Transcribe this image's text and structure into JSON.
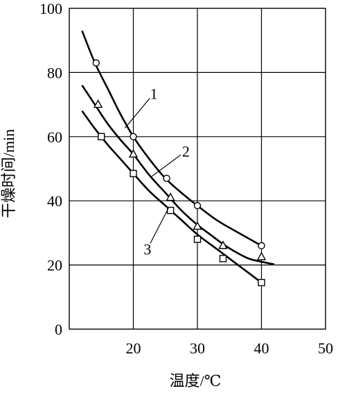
{
  "chart_data": {
    "type": "line",
    "xlabel": "温度/℃",
    "ylabel": "干燥时间/min",
    "xlim": [
      10,
      50
    ],
    "ylim": [
      0,
      100
    ],
    "x_ticks": [
      20,
      30,
      40,
      50
    ],
    "y_ticks": [
      0,
      20,
      40,
      60,
      80,
      100
    ],
    "grid": true,
    "series": [
      {
        "name": "1",
        "marker": "circle",
        "points": [
          [
            14.2,
            83
          ],
          [
            20,
            60
          ],
          [
            25.2,
            47
          ],
          [
            30,
            38.5
          ],
          [
            40,
            26
          ]
        ],
        "curve": [
          [
            12,
            93
          ],
          [
            14,
            83
          ],
          [
            16,
            75
          ],
          [
            18,
            67
          ],
          [
            20,
            60
          ],
          [
            22.5,
            53
          ],
          [
            25,
            47
          ],
          [
            27.5,
            42.5
          ],
          [
            30,
            38.5
          ],
          [
            33,
            34
          ],
          [
            36,
            30.5
          ],
          [
            40,
            26
          ]
        ]
      },
      {
        "name": "2",
        "marker": "triangle",
        "points": [
          [
            14.5,
            70
          ],
          [
            20,
            54.5
          ],
          [
            25.8,
            41
          ],
          [
            30,
            32
          ],
          [
            34,
            26
          ],
          [
            40,
            22.5
          ]
        ],
        "curve": [
          [
            12,
            76
          ],
          [
            14,
            70
          ],
          [
            16,
            64
          ],
          [
            18,
            59
          ],
          [
            20,
            54.5
          ],
          [
            22.5,
            48
          ],
          [
            25,
            42.5
          ],
          [
            27.5,
            37
          ],
          [
            30,
            32.5
          ],
          [
            32,
            29.5
          ],
          [
            34,
            26.5
          ],
          [
            36,
            24
          ],
          [
            38,
            22
          ],
          [
            40,
            21
          ],
          [
            42,
            20.2
          ]
        ]
      },
      {
        "name": "3",
        "marker": "square",
        "points": [
          [
            15,
            60
          ],
          [
            20,
            48.5
          ],
          [
            25.8,
            37
          ],
          [
            30,
            28
          ],
          [
            34,
            22
          ],
          [
            40,
            14.5
          ]
        ],
        "curve": [
          [
            12,
            68
          ],
          [
            14,
            62.5
          ],
          [
            16,
            57.5
          ],
          [
            18,
            53
          ],
          [
            20,
            48.5
          ],
          [
            22.5,
            43
          ],
          [
            25,
            38.5
          ],
          [
            27.5,
            34
          ],
          [
            30,
            29.5
          ],
          [
            33,
            25
          ],
          [
            36,
            20.5
          ],
          [
            38,
            17.5
          ],
          [
            40,
            14.5
          ]
        ]
      }
    ],
    "annotations": [
      {
        "text": "1",
        "series": "1",
        "anchor": [
          18.7,
          62.7
        ],
        "label_at": [
          23.2,
          73.5
        ]
      },
      {
        "text": "2",
        "series": "2",
        "anchor": [
          22.8,
          47.5
        ],
        "label_at": [
          28.2,
          55.5
        ]
      },
      {
        "text": "3",
        "series": "3",
        "anchor": [
          25.5,
          37.8
        ],
        "label_at": [
          22.2,
          25
        ]
      }
    ]
  }
}
